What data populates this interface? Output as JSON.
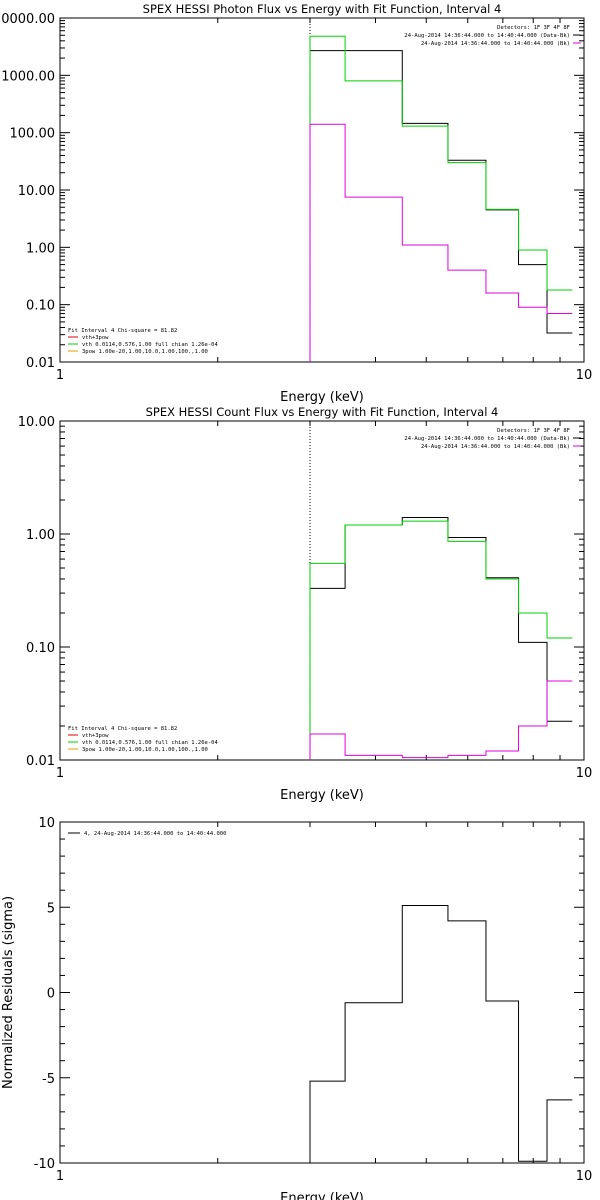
{
  "chart_data": [
    {
      "type": "line",
      "title": "SPEX HESSI Photon Flux vs Energy with Fit Function, Interval 4",
      "xlabel": "Energy (keV)",
      "ylabel": "",
      "xscale": "log",
      "yscale": "log",
      "xlim": [
        1,
        10
      ],
      "ylim": [
        0.01,
        10000
      ],
      "x_ticks": [
        "1",
        "10"
      ],
      "y_ticks": [
        "0.01",
        "0.10",
        "1.00",
        "10.00",
        "100.00",
        "1000.00",
        "0000.00"
      ],
      "energy_edges": [
        3,
        3.5,
        4.5,
        5.5,
        6.5,
        7.5,
        8.5,
        9.5,
        10
      ],
      "energy_marker": 3,
      "series": [
        {
          "values": [
            2700,
            2700,
            145,
            33,
            4.5,
            0.5,
            0.032
          ],
          "color": "#000000"
        },
        {
          "values": [
            4800,
            800,
            130,
            30,
            4.6,
            0.9,
            0.18
          ],
          "color": "#00d000"
        },
        {
          "values": [
            140,
            7.5,
            1.1,
            0.4,
            0.16,
            0.09,
            0.07
          ],
          "color": "#e000e0"
        }
      ],
      "info_lines": [
        {
          "text": "Detectors: 1F 3F 4F 8F",
          "color": "#000000"
        },
        {
          "text": "24-Aug-2014 14:36:44.000 to 14:40:44.000 (Data-Bk)",
          "color": "#000000"
        },
        {
          "text": "24-Aug-2014 14:36:44.000 to 14:40:44.000 (Bk)",
          "color": "#e000e0"
        }
      ],
      "fit_lines": [
        {
          "text": "Fit Interval 4   Chi-square = 81.82",
          "color": "#000000"
        },
        {
          "text": "vth+3pow",
          "color": "#e00000"
        },
        {
          "text": "vth 0.0114,0.576,1.00  full chian 1.26e-04",
          "color": "#00d000"
        },
        {
          "text": "3pow 1.00e-20,1.00,10.0,1.00,100.,1.00",
          "color": "#e0a000"
        }
      ],
      "grid": false
    },
    {
      "type": "line",
      "title": "SPEX HESSI Count Flux vs Energy with Fit Function, Interval 4",
      "xlabel": "Energy (keV)",
      "ylabel": "",
      "xscale": "log",
      "yscale": "log",
      "xlim": [
        1,
        10
      ],
      "ylim": [
        0.01,
        10
      ],
      "x_ticks": [
        "1",
        "10"
      ],
      "y_ticks": [
        "0.01",
        "0.10",
        "1.00",
        "10.00"
      ],
      "energy_edges": [
        3,
        3.5,
        4.5,
        5.5,
        6.5,
        7.5,
        8.5,
        9.5,
        10
      ],
      "energy_marker": 3,
      "series": [
        {
          "values": [
            0.33,
            1.2,
            1.4,
            0.93,
            0.41,
            0.11,
            0.022
          ],
          "color": "#000000"
        },
        {
          "values": [
            0.55,
            1.2,
            1.3,
            0.86,
            0.4,
            0.2,
            0.12
          ],
          "color": "#00d000"
        },
        {
          "values": [
            0.017,
            0.011,
            0.0105,
            0.011,
            0.012,
            0.02,
            0.05
          ],
          "color": "#e000e0"
        }
      ],
      "info_lines": [
        {
          "text": "Detectors: 1F 3F 4F 8F",
          "color": "#000000"
        },
        {
          "text": "24-Aug-2014 14:36:44.000 to 14:40:44.000 (Data-Bk)",
          "color": "#000000"
        },
        {
          "text": "24-Aug-2014 14:36:44.000 to 14:40:44.000 (Bk)",
          "color": "#e000e0"
        }
      ],
      "fit_lines": [
        {
          "text": "Fit Interval 4   Chi-square = 81.82",
          "color": "#000000"
        },
        {
          "text": "vth+3pow",
          "color": "#e00000"
        },
        {
          "text": "vth 0.0114,0.576,1.00  full chian 1.26e-04",
          "color": "#00d000"
        },
        {
          "text": "3pow 1.00e-20,1.00,10.0,1.00,100.,1.00",
          "color": "#e0a000"
        }
      ],
      "grid": false
    },
    {
      "type": "line",
      "title": "",
      "xlabel": "Energy (keV)",
      "ylabel": "Normalized Residuals (sigma)",
      "xscale": "log",
      "yscale": "linear",
      "xlim": [
        1,
        10
      ],
      "ylim": [
        -10,
        10
      ],
      "x_ticks": [
        "1",
        "10"
      ],
      "y_ticks": [
        "-10",
        "-5",
        "0",
        "5",
        "10"
      ],
      "energy_edges": [
        3,
        3.5,
        4.5,
        5.5,
        6.5,
        7.5,
        8.5,
        9.5,
        10
      ],
      "series": [
        {
          "values": [
            -5.2,
            -0.6,
            5.1,
            4.2,
            -0.5,
            -9.9,
            -6.3
          ],
          "color": "#000000"
        }
      ],
      "legend_text": "4, 24-Aug-2014 14:36:44.000 to 14:40:44.000",
      "grid": false
    }
  ]
}
